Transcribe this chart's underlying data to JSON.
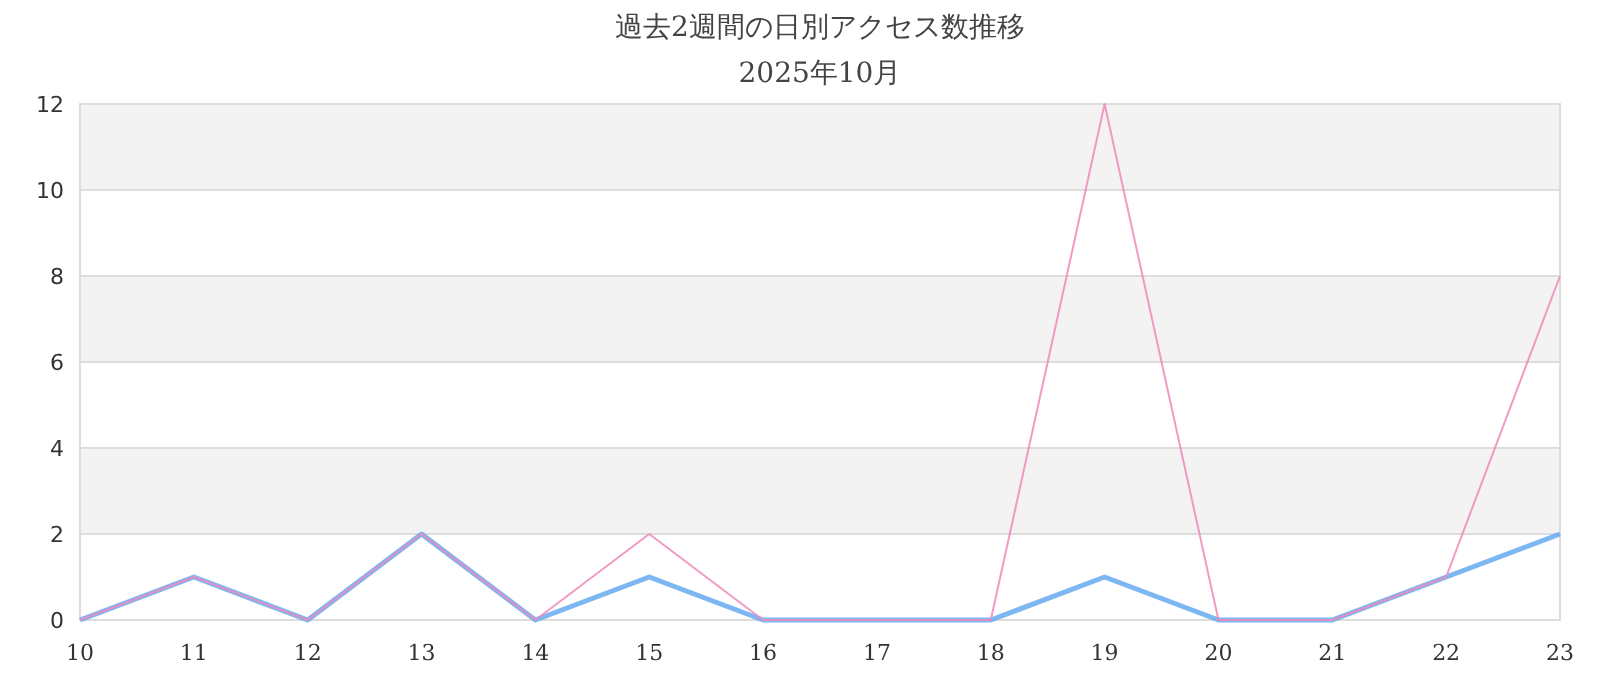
{
  "chart_data": {
    "type": "line",
    "title": "過去2週間の日別アクセス数推移",
    "subtitle": "2025年10月",
    "categories": [
      "10",
      "11",
      "12",
      "13",
      "14",
      "15",
      "16",
      "17",
      "18",
      "19",
      "20",
      "21",
      "22",
      "23"
    ],
    "series": [
      {
        "color": "#66aaee",
        "values": [
          0,
          1,
          0,
          2,
          0,
          1,
          0,
          0,
          0,
          1,
          0,
          0,
          1,
          2
        ]
      },
      {
        "color": "#ee88bb",
        "values": [
          0,
          1,
          0,
          2,
          0,
          2,
          0,
          0,
          0,
          12,
          0,
          0,
          1,
          8
        ]
      }
    ],
    "ylim": [
      0,
      12
    ],
    "yticks": [
      0,
      2,
      4,
      6,
      8,
      10,
      12
    ],
    "grid": "y",
    "marker": "none",
    "line_style": "solid"
  }
}
